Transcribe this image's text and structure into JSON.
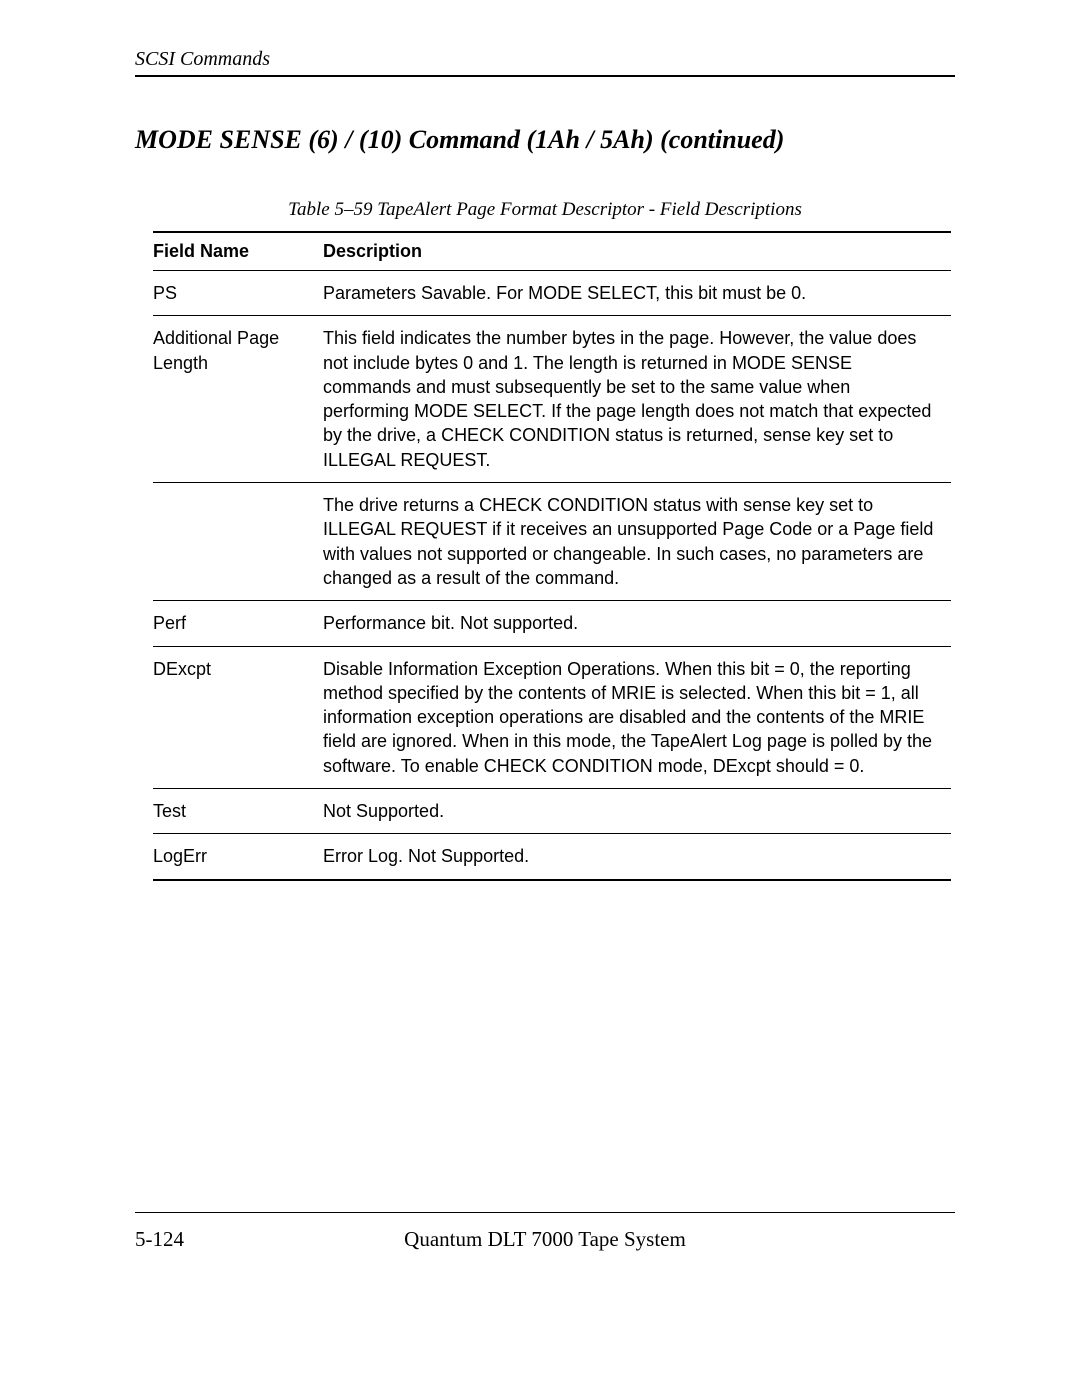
{
  "header": {
    "running_head": "SCSI Commands"
  },
  "section": {
    "title": "MODE SENSE  (6) / (10) Command  (1Ah / 5Ah) (continued)"
  },
  "table": {
    "caption": "Table 5–59 TapeAlert Page Format Descriptor - Field Descriptions",
    "columns": {
      "field_name": "Field Name",
      "description": "Description"
    },
    "rows": [
      {
        "field": "PS",
        "desc": "Parameters Savable. For MODE SELECT, this bit must be 0.",
        "sep": true
      },
      {
        "field": "Additional Page Length",
        "desc": "This field indicates the number bytes in the page. However, the value does not include bytes 0 and 1. The length is returned in MODE SENSE commands and must subsequently be set to the same value when performing MODE SELECT. If the page length does not match that expected by the drive, a CHECK CONDITION status is returned, sense key set to ILLEGAL REQUEST.",
        "sep": true
      },
      {
        "field": "",
        "desc": "The drive returns a CHECK CONDITION status with sense key set to ILLEGAL REQUEST if it receives an unsupported Page Code or a Page field with values not supported or changeable. In such cases, no parameters are changed as a result of the command.",
        "sep": true
      },
      {
        "field": "Perf",
        "desc": "Performance bit. Not supported.",
        "sep": true
      },
      {
        "field": "DExcpt",
        "desc": "Disable Information Exception Operations. When this bit = 0, the reporting method specified by the contents of MRIE is selected.  When this bit = 1, all information exception operations are disabled and the contents of the MRIE field are ignored. When in this mode, the TapeAlert Log page is polled by the software. To enable CHECK CONDITION mode, DExcpt should = 0.",
        "sep": true
      },
      {
        "field": "Test",
        "desc": "Not Supported.",
        "sep": true
      },
      {
        "field": "LogErr",
        "desc": "Error Log. Not Supported.",
        "sep": false,
        "end": true
      }
    ]
  },
  "footer": {
    "page_number": "5-124",
    "doc_title": "Quantum DLT 7000 Tape System"
  }
}
